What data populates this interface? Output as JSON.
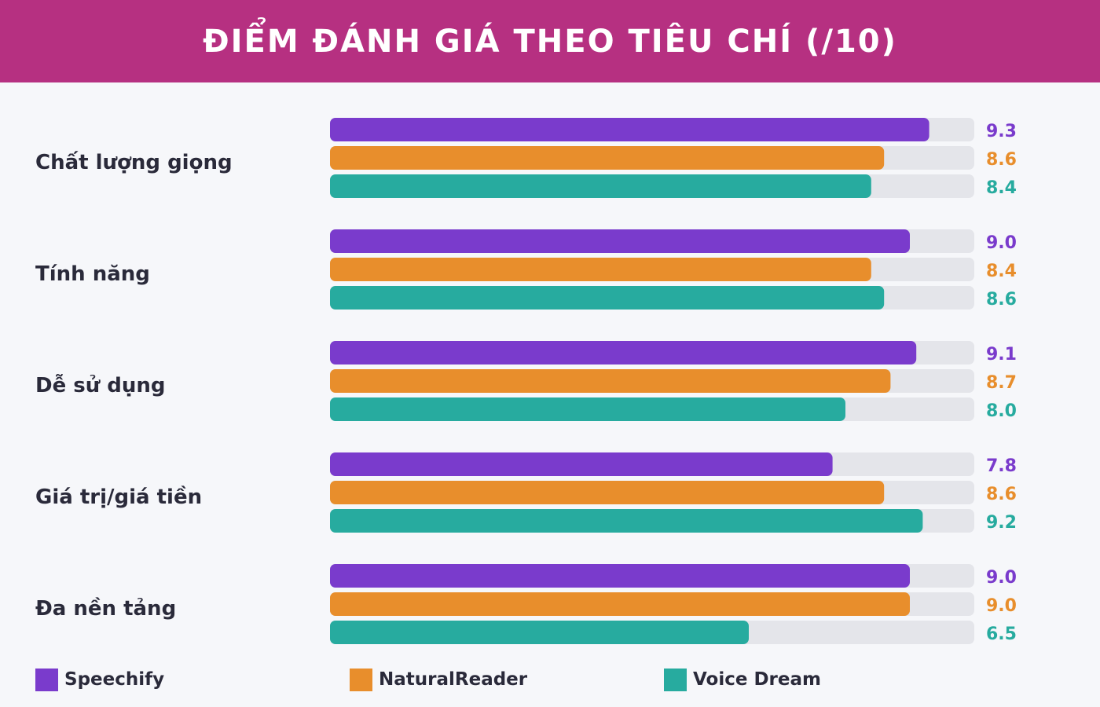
{
  "chart_data": {
    "type": "bar",
    "orientation": "horizontal",
    "title": "ĐIỂM ĐÁNH GIÁ THEO TIÊU CHÍ (/10)",
    "categories": [
      "Chất lượng giọng",
      "Tính năng",
      "Dễ sử dụng",
      "Giá trị/giá tiền",
      "Đa nền tảng"
    ],
    "series": [
      {
        "name": "Speechify",
        "color": "#7a3bcc",
        "values": [
          9.3,
          9.0,
          9.1,
          7.8,
          9.0
        ],
        "labels": [
          "9.3",
          "9.0",
          "9.1",
          "7.8",
          "9.0"
        ]
      },
      {
        "name": "NaturalReader",
        "color": "#e88e2c",
        "values": [
          8.6,
          8.4,
          8.7,
          8.6,
          9.0
        ],
        "labels": [
          "8.6",
          "8.4",
          "8.7",
          "8.6",
          "9.0"
        ]
      },
      {
        "name": "Voice Dream",
        "color": "#27ab9f",
        "values": [
          8.4,
          8.6,
          8.0,
          9.2,
          6.5
        ],
        "labels": [
          "8.4",
          "8.6",
          "8.0",
          "9.2",
          "6.5"
        ]
      }
    ],
    "xlim": [
      0,
      10
    ],
    "track_color": "#e4e5ea",
    "header_color": "#b63081",
    "grid": false,
    "legend_position": "bottom"
  }
}
